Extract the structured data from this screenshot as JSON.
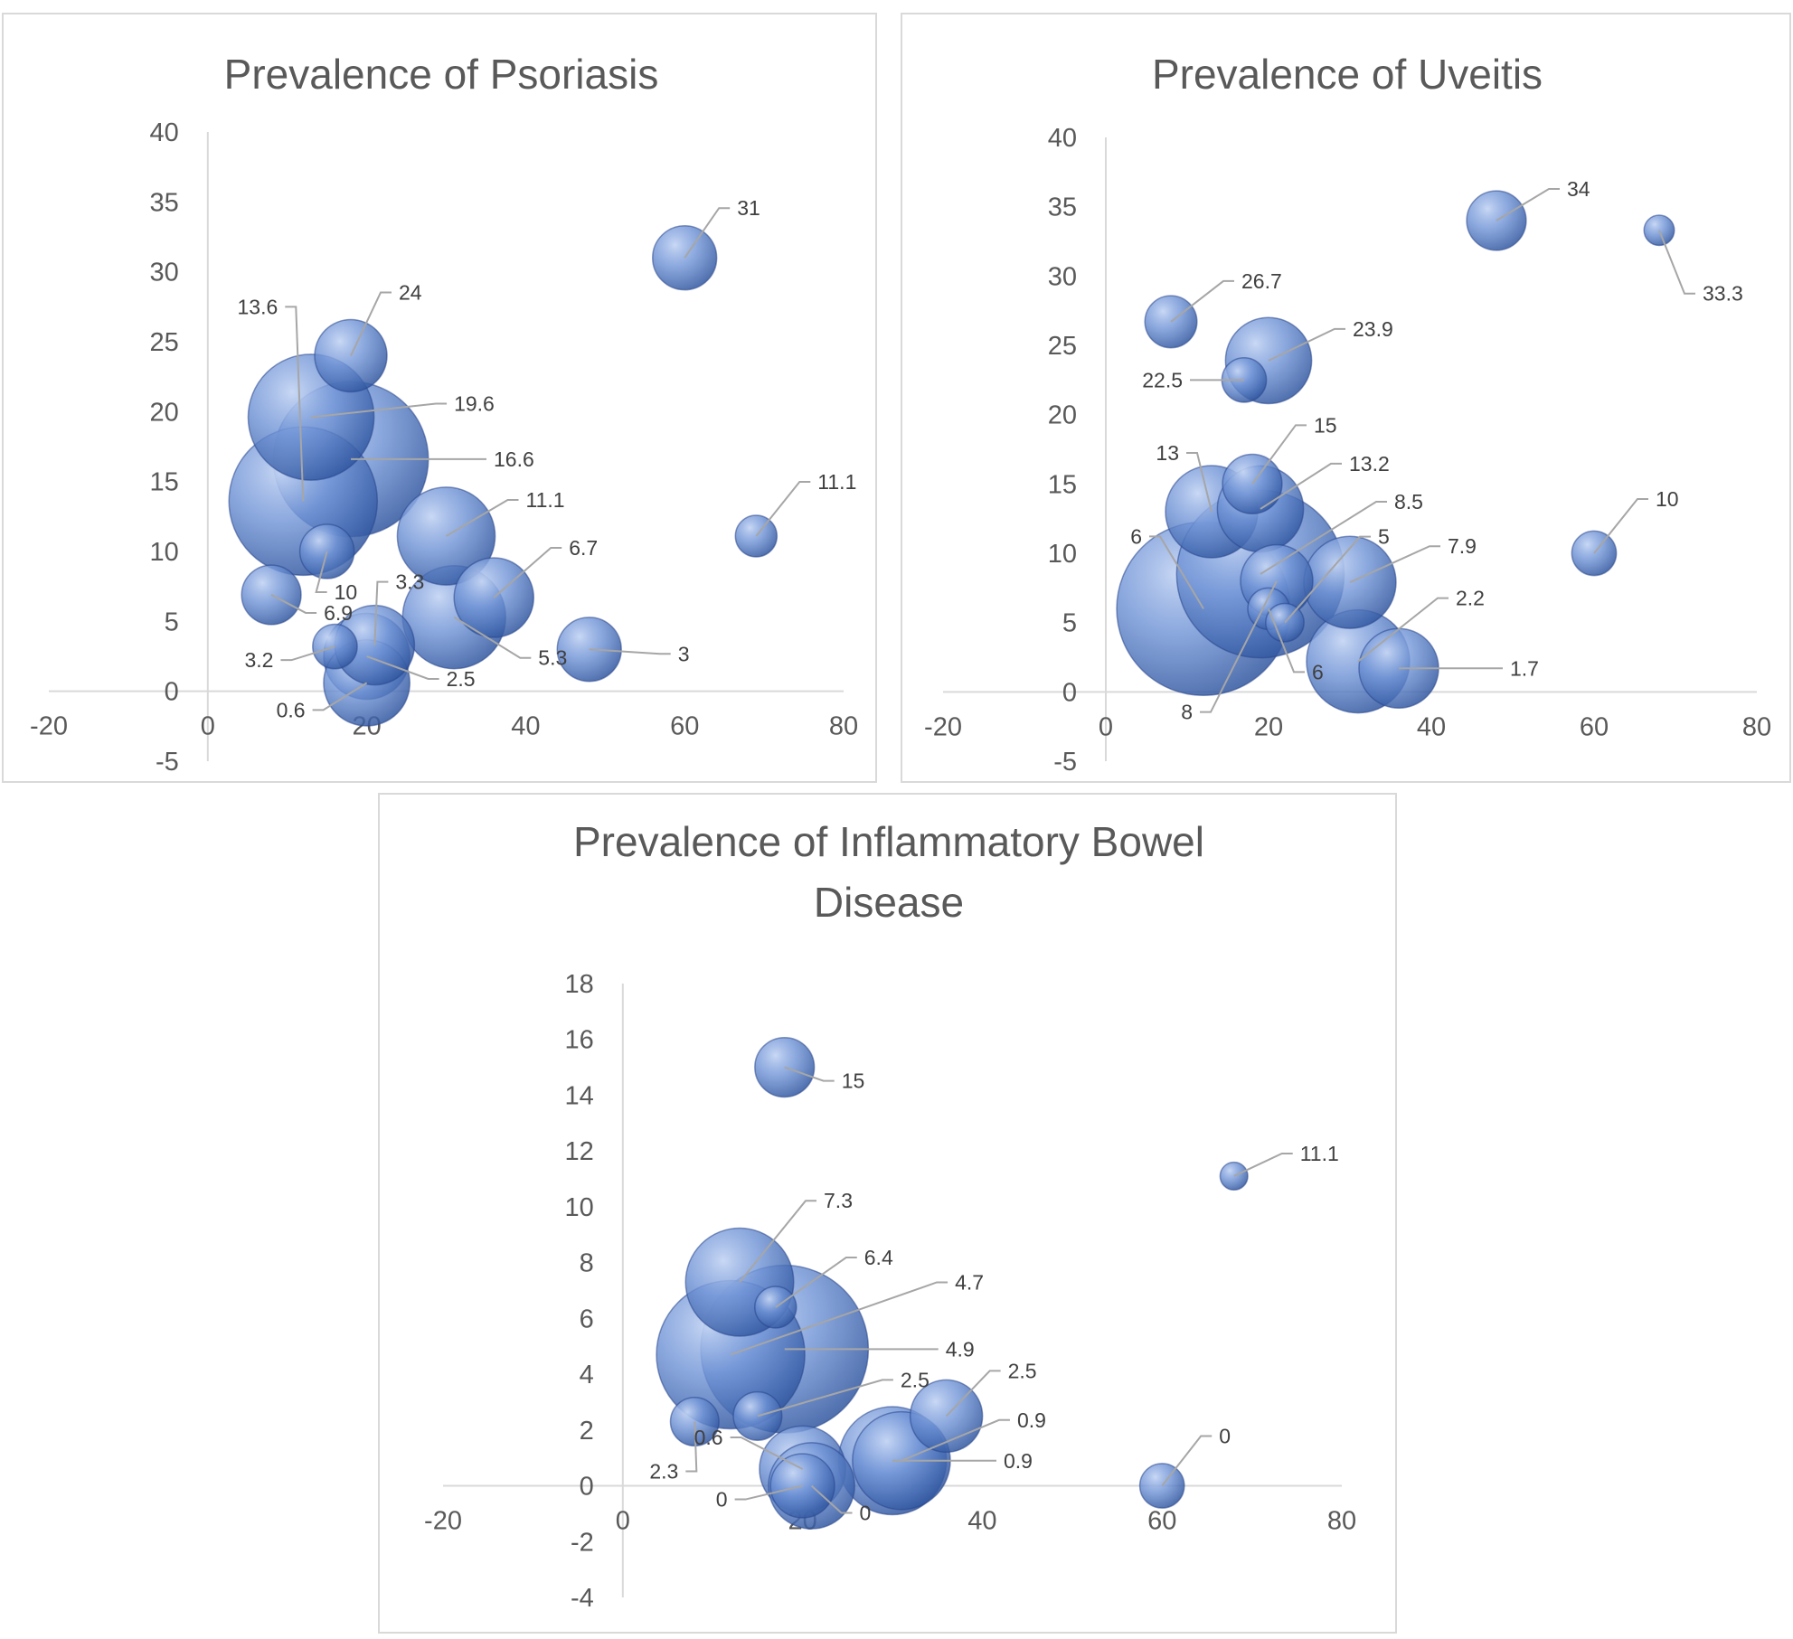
{
  "chart_data": [
    {
      "type": "scatter",
      "title": "Prevalence of Psoriasis",
      "xlim": [
        -20,
        80
      ],
      "ylim": [
        -5,
        40
      ],
      "x_ticks": [
        "-20",
        "0",
        "20",
        "40",
        "60",
        "80"
      ],
      "y_ticks": [
        "-5",
        "0",
        "5",
        "10",
        "15",
        "20",
        "25",
        "30",
        "35",
        "40"
      ],
      "grid": false,
      "legend": "none",
      "points": [
        {
          "x": 60,
          "y": 31,
          "size": 3,
          "label": "31"
        },
        {
          "x": 18,
          "y": 24,
          "size": 4,
          "label": "24"
        },
        {
          "x": 13,
          "y": 19.6,
          "size": 14,
          "label": "19.6"
        },
        {
          "x": 18,
          "y": 16.6,
          "size": 22,
          "label": "16.6"
        },
        {
          "x": 12,
          "y": 13.6,
          "size": 20,
          "label": "13.6"
        },
        {
          "x": 69,
          "y": 11.1,
          "size": 1,
          "label": "11.1"
        },
        {
          "x": 30,
          "y": 11.1,
          "size": 8,
          "label": "11.1"
        },
        {
          "x": 15,
          "y": 10,
          "size": 2,
          "label": "10"
        },
        {
          "x": 8,
          "y": 6.9,
          "size": 2.5,
          "label": "6.9"
        },
        {
          "x": 36,
          "y": 6.7,
          "size": 5,
          "label": "6.7"
        },
        {
          "x": 31,
          "y": 5.3,
          "size": 9,
          "label": "5.3"
        },
        {
          "x": 21,
          "y": 3.3,
          "size": 5,
          "label": "3.3"
        },
        {
          "x": 16,
          "y": 3.2,
          "size": 1.2,
          "label": "3.2"
        },
        {
          "x": 48,
          "y": 3,
          "size": 3,
          "label": "3"
        },
        {
          "x": 20,
          "y": 2.5,
          "size": 6,
          "label": "2.5"
        },
        {
          "x": 20,
          "y": 0.6,
          "size": 6,
          "label": "0.6"
        }
      ]
    },
    {
      "type": "scatter",
      "title": "Prevalence of Uveitis",
      "xlim": [
        -20,
        80
      ],
      "ylim": [
        -5,
        40
      ],
      "x_ticks": [
        "-20",
        "0",
        "20",
        "40",
        "60",
        "80"
      ],
      "y_ticks": [
        "-5",
        "0",
        "5",
        "10",
        "15",
        "20",
        "25",
        "30",
        "35",
        "40"
      ],
      "grid": false,
      "legend": "none",
      "points": [
        {
          "x": 48,
          "y": 34,
          "size": 2.5,
          "label": "34"
        },
        {
          "x": 68,
          "y": 33.3,
          "size": 0.4,
          "label": "33.3"
        },
        {
          "x": 8,
          "y": 26.7,
          "size": 1.8,
          "label": "26.7"
        },
        {
          "x": 20,
          "y": 23.9,
          "size": 6,
          "label": "23.9"
        },
        {
          "x": 17,
          "y": 22.5,
          "size": 1.2,
          "label": "22.5"
        },
        {
          "x": 18,
          "y": 15,
          "size": 2.5,
          "label": "15"
        },
        {
          "x": 13,
          "y": 13,
          "size": 7,
          "label": "13"
        },
        {
          "x": 19,
          "y": 13.2,
          "size": 6,
          "label": "13.2"
        },
        {
          "x": 60,
          "y": 10,
          "size": 1.2,
          "label": "10"
        },
        {
          "x": 19,
          "y": 8.5,
          "size": 26,
          "label": "8.5"
        },
        {
          "x": 21,
          "y": 8,
          "size": 4,
          "label": "8"
        },
        {
          "x": 30,
          "y": 7.9,
          "size": 7,
          "label": "7.9"
        },
        {
          "x": 12,
          "y": 6,
          "size": 28,
          "label": "6"
        },
        {
          "x": 20,
          "y": 6,
          "size": 1,
          "label": "6"
        },
        {
          "x": 22,
          "y": 5,
          "size": 0.8,
          "label": "5"
        },
        {
          "x": 31,
          "y": 2.2,
          "size": 9,
          "label": "2.2"
        },
        {
          "x": 36,
          "y": 1.7,
          "size": 5,
          "label": "1.7"
        }
      ]
    },
    {
      "type": "scatter",
      "title": "Prevalence of Inflammatory Bowel Disease",
      "title_lines": [
        "Prevalence of Inflammatory Bowel",
        "Disease"
      ],
      "xlim": [
        -20,
        80
      ],
      "ylim": [
        -4,
        18
      ],
      "x_ticks": [
        "-20",
        "0",
        "20",
        "40",
        "60",
        "80"
      ],
      "y_ticks": [
        "-4",
        "-2",
        "0",
        "2",
        "4",
        "6",
        "8",
        "10",
        "12",
        "14",
        "16",
        "18"
      ],
      "grid": false,
      "legend": "none",
      "points": [
        {
          "x": 18,
          "y": 15,
          "size": 2.5,
          "label": "15"
        },
        {
          "x": 68,
          "y": 11.1,
          "size": 0.3,
          "label": "11.1"
        },
        {
          "x": 13,
          "y": 7.3,
          "size": 10,
          "label": "7.3"
        },
        {
          "x": 17,
          "y": 6.4,
          "size": 1,
          "label": "6.4"
        },
        {
          "x": 18,
          "y": 4.9,
          "size": 26,
          "label": "4.9"
        },
        {
          "x": 12,
          "y": 4.7,
          "size": 20,
          "label": "4.7"
        },
        {
          "x": 36,
          "y": 2.5,
          "size": 4,
          "label": "2.5"
        },
        {
          "x": 15,
          "y": 2.5,
          "size": 1.5,
          "label": "2.5"
        },
        {
          "x": 8,
          "y": 2.3,
          "size": 1.5,
          "label": "2.3"
        },
        {
          "x": 31,
          "y": 0.9,
          "size": 8,
          "label": "0.9"
        },
        {
          "x": 30,
          "y": 0.9,
          "size": 10,
          "label": "0.9"
        },
        {
          "x": 20,
          "y": 0.6,
          "size": 6,
          "label": "0.6"
        },
        {
          "x": 21,
          "y": 0,
          "size": 6,
          "label": "0"
        },
        {
          "x": 20,
          "y": 0,
          "size": 3,
          "label": "0"
        },
        {
          "x": 60,
          "y": 0,
          "size": 1.2,
          "label": "0"
        }
      ]
    }
  ]
}
